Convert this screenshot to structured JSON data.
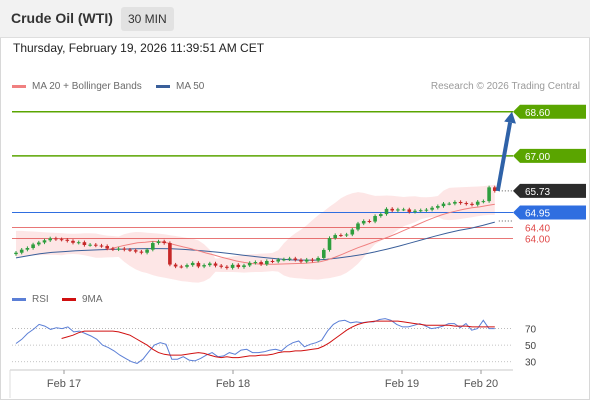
{
  "header": {
    "title": "Crude Oil (WTI)",
    "interval": "30 MIN",
    "timestamp": "Thursday, February 19, 2026 11:39:51 AM CET"
  },
  "legend": {
    "ma20": "MA 20 + Bollinger Bands",
    "ma50": "MA 50",
    "rsi": "RSI",
    "ma9": "9MA",
    "copyright": "Research © 2026 Trading Central"
  },
  "colors": {
    "bullish": "#2e9e3e",
    "bearish": "#c62828",
    "ma20": "#f08080",
    "ma50": "#3a5f9a",
    "bollinger_fill": "#fde2e2",
    "target": "#5aa500",
    "pivot": "#2f6ee0",
    "support": "#e04848",
    "arrow": "#2f62a8",
    "rsi_line": "#5b7fd6",
    "rsi_ma": "#d01010"
  },
  "chart_data": [
    {
      "type": "candlestick",
      "instrument": "Crude Oil (WTI)",
      "interval": "30 MIN",
      "x_labels": [
        "Feb 17",
        "Feb 18",
        "Feb 19",
        "Feb 20"
      ],
      "ylim": [
        62.5,
        69.1
      ],
      "levels": [
        {
          "value": 68.6,
          "label": "68.60",
          "kind": "target"
        },
        {
          "value": 67.0,
          "label": "67.00",
          "kind": "target"
        },
        {
          "value": 65.73,
          "label": "65.73",
          "kind": "last"
        },
        {
          "value": 64.95,
          "label": "64.95",
          "kind": "pivot"
        },
        {
          "value": 64.4,
          "label": "64.40",
          "kind": "support"
        },
        {
          "value": 64.0,
          "label": "64.00",
          "kind": "support"
        }
      ],
      "close": [
        63.49,
        63.6,
        63.66,
        63.79,
        63.86,
        63.94,
        64.01,
        63.98,
        63.96,
        63.92,
        63.85,
        63.87,
        63.77,
        63.78,
        63.75,
        63.73,
        63.64,
        63.61,
        63.64,
        63.6,
        63.58,
        63.53,
        63.49,
        63.6,
        63.84,
        63.9,
        63.84,
        63.06,
        62.99,
        62.98,
        63.04,
        63.12,
        62.99,
        63.04,
        63.1,
        63.02,
        62.98,
        62.94,
        63.05,
        62.97,
        63.03,
        63.12,
        63.15,
        63.07,
        63.19,
        63.17,
        63.24,
        63.25,
        63.28,
        63.23,
        63.17,
        63.24,
        63.2,
        63.3,
        63.59,
        64.02,
        64.13,
        64.12,
        64.15,
        64.33,
        64.55,
        64.64,
        64.62,
        64.82,
        64.89,
        65.08,
        65.02,
        65.06,
        65.06,
        64.97,
        65.01,
        65.03,
        65.05,
        65.12,
        65.18,
        65.27,
        65.27,
        65.33,
        65.29,
        65.26,
        65.23,
        65.34,
        65.36,
        65.86,
        65.73
      ],
      "ma20": [
        63.6,
        63.67,
        63.74,
        63.8,
        63.85,
        63.87,
        63.9,
        63.88,
        63.84,
        63.77,
        63.7,
        63.64,
        63.56,
        63.48,
        63.41,
        63.33,
        63.26,
        63.19,
        63.14,
        63.1,
        63.08,
        63.07,
        63.07,
        63.08,
        63.09,
        63.1,
        63.11,
        63.13,
        63.16,
        63.23,
        63.33,
        63.44,
        63.56,
        63.67,
        63.77,
        63.87,
        63.96,
        64.06,
        64.17,
        64.29,
        64.41,
        64.53,
        64.65,
        64.76,
        64.86,
        64.94,
        65.01,
        65.07,
        65.12,
        65.15,
        65.2,
        65.25
      ],
      "ma20_start_index": 16,
      "ma50": [
        63.3,
        63.38,
        63.45,
        63.5,
        63.53,
        63.56,
        63.58,
        63.6,
        63.61,
        63.62,
        63.63,
        63.64,
        63.64,
        63.63,
        63.61,
        63.58,
        63.54,
        63.5,
        63.45,
        63.4,
        63.35,
        63.3,
        63.26,
        63.23,
        63.22,
        63.22,
        63.25,
        63.3,
        63.36,
        63.43,
        63.52,
        63.62,
        63.73,
        63.85,
        63.97,
        64.09,
        64.2,
        64.3,
        64.38,
        64.48,
        64.6
      ],
      "ma50_start_index": 0,
      "forecast": {
        "from": 65.73,
        "to": 68.6
      }
    },
    {
      "type": "line",
      "title": "RSI",
      "ylim": [
        20,
        90
      ],
      "y_ticks": [
        70,
        50,
        30
      ],
      "series": [
        {
          "name": "RSI",
          "values": [
            52,
            57,
            64,
            69,
            75,
            73,
            69,
            71,
            70,
            72,
            66,
            67,
            64,
            61,
            57,
            50,
            47,
            43,
            38,
            34,
            30,
            28,
            33,
            42,
            50,
            53,
            51,
            33,
            33,
            36,
            32,
            31,
            34,
            38,
            41,
            36,
            37,
            41,
            39,
            44,
            45,
            41,
            41,
            42,
            44,
            45,
            43,
            49,
            53,
            55,
            48,
            51,
            53,
            56,
            67,
            75,
            79,
            80,
            77,
            78,
            77,
            78,
            78,
            81,
            82,
            80,
            75,
            72,
            72,
            74,
            76,
            73,
            70,
            71,
            73,
            76,
            76,
            71,
            76,
            68,
            70,
            80,
            70,
            70
          ]
        },
        {
          "name": "9MA",
          "values": [
            58,
            60,
            62,
            65,
            67,
            67,
            67,
            67,
            67,
            67,
            66,
            64,
            62,
            58,
            54,
            50,
            45,
            41,
            39,
            38,
            38,
            38,
            39,
            40,
            41,
            40,
            38,
            36,
            35,
            36,
            35,
            35,
            36,
            37,
            37,
            38,
            38,
            39,
            41,
            42,
            42,
            43,
            43,
            44,
            45,
            46,
            49,
            53,
            58,
            63,
            68,
            72,
            75,
            77,
            78,
            79,
            79,
            79,
            79,
            79,
            78,
            77,
            76,
            75,
            74,
            74,
            74,
            74,
            74,
            73,
            73,
            73,
            72,
            72,
            72,
            72,
            72
          ]
        }
      ]
    }
  ]
}
